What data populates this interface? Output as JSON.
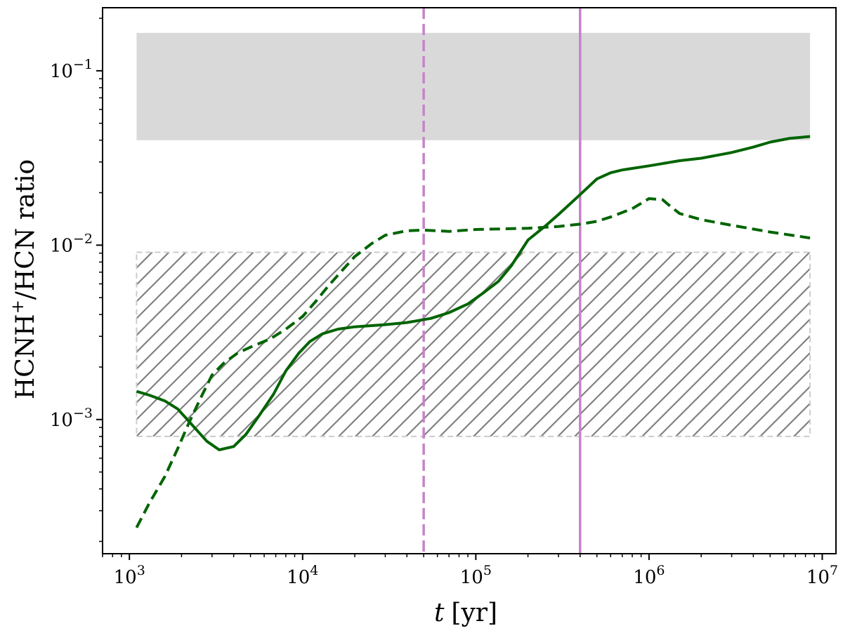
{
  "chart_data": {
    "type": "line",
    "xlabel": {
      "var": "t",
      "unit": "[yr]"
    },
    "ylabel": {
      "pre": "HCNH",
      "sup": "+",
      "post": "/HCN ratio"
    },
    "xscale": "log",
    "yscale": "log",
    "xlim": [
      700,
      12000000
    ],
    "ylim": [
      0.00017,
      0.23
    ],
    "x_ticks": [
      {
        "value": 1000,
        "base": "10",
        "exp": "3"
      },
      {
        "value": 10000,
        "base": "10",
        "exp": "4"
      },
      {
        "value": 100000,
        "base": "10",
        "exp": "5"
      },
      {
        "value": 1000000,
        "base": "10",
        "exp": "6"
      },
      {
        "value": 10000000,
        "base": "10",
        "exp": "7"
      }
    ],
    "y_ticks": [
      {
        "value": 0.001,
        "base": "10",
        "exp": "−3"
      },
      {
        "value": 0.01,
        "base": "10",
        "exp": "−2"
      },
      {
        "value": 0.1,
        "base": "10",
        "exp": "−1"
      }
    ],
    "grid": false,
    "bands": [
      {
        "style": "solid",
        "x": [
          1100,
          8500000
        ],
        "y": [
          0.04,
          0.165
        ],
        "color": "#d9d9d9"
      },
      {
        "style": "hatched",
        "x": [
          1100,
          8500000
        ],
        "y": [
          0.0008,
          0.0091
        ],
        "color": "#808080",
        "border": "#cccccc"
      }
    ],
    "vlines": [
      {
        "x": 50000,
        "style": "dashed",
        "color": "#c783c7"
      },
      {
        "x": 400000,
        "style": "solid",
        "color": "#c783c7"
      }
    ],
    "series": [
      {
        "style": "solid",
        "color": "#006400",
        "points": [
          [
            1100,
            0.00145
          ],
          [
            1300,
            0.00138
          ],
          [
            1600,
            0.00128
          ],
          [
            1900,
            0.00115
          ],
          [
            2200,
            0.00098
          ],
          [
            2500,
            0.00085
          ],
          [
            2800,
            0.00075
          ],
          [
            3300,
            0.00067
          ],
          [
            4000,
            0.0007
          ],
          [
            4700,
            0.00082
          ],
          [
            5600,
            0.00105
          ],
          [
            6800,
            0.0014
          ],
          [
            8000,
            0.0019
          ],
          [
            9500,
            0.0024
          ],
          [
            11000,
            0.0028
          ],
          [
            13000,
            0.0031
          ],
          [
            16000,
            0.0033
          ],
          [
            20000,
            0.0034
          ],
          [
            30000,
            0.0035
          ],
          [
            40000,
            0.0036
          ],
          [
            55000,
            0.0038
          ],
          [
            70000,
            0.0041
          ],
          [
            90000,
            0.0046
          ],
          [
            110000,
            0.0053
          ],
          [
            135000,
            0.0062
          ],
          [
            160000,
            0.0076
          ],
          [
            180000,
            0.0091
          ],
          [
            200000,
            0.0107
          ],
          [
            250000,
            0.0128
          ],
          [
            300000,
            0.015
          ],
          [
            400000,
            0.0195
          ],
          [
            500000,
            0.024
          ],
          [
            600000,
            0.026
          ],
          [
            700000,
            0.027
          ],
          [
            1000000,
            0.0285
          ],
          [
            1500000,
            0.0305
          ],
          [
            2000000,
            0.0315
          ],
          [
            3000000,
            0.034
          ],
          [
            4000000,
            0.0365
          ],
          [
            5000000,
            0.039
          ],
          [
            6500000,
            0.041
          ],
          [
            8500000,
            0.042
          ]
        ]
      },
      {
        "style": "dashed",
        "color": "#006400",
        "points": [
          [
            1100,
            0.00024
          ],
          [
            1300,
            0.00033
          ],
          [
            1600,
            0.00047
          ],
          [
            1900,
            0.00068
          ],
          [
            2200,
            0.00095
          ],
          [
            2600,
            0.00135
          ],
          [
            3000,
            0.0018
          ],
          [
            3500,
            0.0021
          ],
          [
            4200,
            0.0024
          ],
          [
            5000,
            0.0026
          ],
          [
            6500,
            0.0029
          ],
          [
            8000,
            0.0033
          ],
          [
            10000,
            0.0039
          ],
          [
            12000,
            0.0048
          ],
          [
            14000,
            0.0058
          ],
          [
            17000,
            0.0072
          ],
          [
            20000,
            0.0086
          ],
          [
            25000,
            0.0102
          ],
          [
            30000,
            0.0114
          ],
          [
            40000,
            0.0121
          ],
          [
            50000,
            0.0122
          ],
          [
            70000,
            0.012
          ],
          [
            100000,
            0.0123
          ],
          [
            200000,
            0.0125
          ],
          [
            300000,
            0.0128
          ],
          [
            400000,
            0.0132
          ],
          [
            500000,
            0.0137
          ],
          [
            600000,
            0.0145
          ],
          [
            800000,
            0.0162
          ],
          [
            1000000,
            0.0185
          ],
          [
            1200000,
            0.0182
          ],
          [
            1300000,
            0.017
          ],
          [
            1500000,
            0.0152
          ],
          [
            2000000,
            0.014
          ],
          [
            3000000,
            0.013
          ],
          [
            5000000,
            0.0119
          ],
          [
            8500000,
            0.011
          ]
        ]
      }
    ]
  }
}
